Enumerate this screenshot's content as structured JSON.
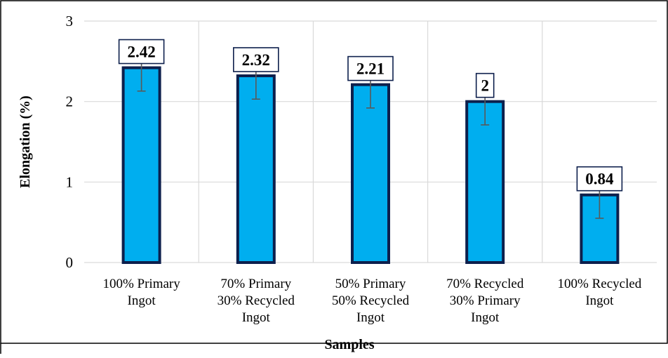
{
  "chart_data": {
    "type": "bar",
    "categories": [
      [
        "100% Primary",
        "Ingot"
      ],
      [
        "70% Primary",
        "30% Recycled",
        "Ingot"
      ],
      [
        "50% Primary",
        "50% Recycled",
        "Ingot"
      ],
      [
        "70% Recycled",
        "30% Primary",
        "Ingot"
      ],
      [
        "100% Recycled",
        "Ingot"
      ]
    ],
    "values": [
      2.42,
      2.32,
      2.21,
      2,
      0.84
    ],
    "data_labels": [
      "2.42",
      "2.32",
      "2.21",
      "2",
      "0.84"
    ],
    "error": [
      0.29,
      0.29,
      0.29,
      0.29,
      0.29
    ],
    "xlabel": "Samples",
    "ylabel": "Elongation (%)",
    "ylim": [
      0,
      3
    ],
    "yticks": [
      0,
      1,
      2,
      3
    ],
    "grid": true,
    "legend": "none",
    "colors": {
      "bar_fill": "#00AEEF",
      "bar_border": "#0D1F4C",
      "error_bar": "#595959",
      "grid": "#D9D9D9",
      "label_border": "#0D1F4C"
    }
  }
}
